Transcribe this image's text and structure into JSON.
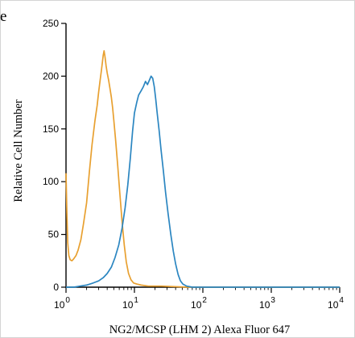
{
  "corner_text": "e",
  "colors": {
    "control": "#e8a030",
    "stained": "#2b86c1",
    "axis": "#000000"
  },
  "chart_data": {
    "type": "line",
    "title": "",
    "xlabel": "NG2/MCSP (LHM 2) Alexa Fluor 647",
    "ylabel": "Relative Cell Number",
    "xscale": "log",
    "xlim": [
      1,
      10000
    ],
    "ylim": [
      0,
      250
    ],
    "yticks": [
      0,
      50,
      100,
      150,
      200,
      250
    ],
    "xticks": [
      {
        "value": 1,
        "base": "10",
        "exp": "0"
      },
      {
        "value": 10,
        "base": "10",
        "exp": "1"
      },
      {
        "value": 100,
        "base": "10",
        "exp": "2"
      },
      {
        "value": 1000,
        "base": "10",
        "exp": "3"
      },
      {
        "value": 10000,
        "base": "10",
        "exp": "4"
      }
    ],
    "grid": false,
    "legend": "none",
    "series": [
      {
        "color": "#e8a030",
        "points": [
          [
            1.0,
            108
          ],
          [
            1.03,
            70
          ],
          [
            1.06,
            42
          ],
          [
            1.1,
            30
          ],
          [
            1.15,
            26
          ],
          [
            1.22,
            25
          ],
          [
            1.3,
            27
          ],
          [
            1.4,
            30
          ],
          [
            1.5,
            35
          ],
          [
            1.65,
            45
          ],
          [
            1.8,
            60
          ],
          [
            2.0,
            80
          ],
          [
            2.2,
            110
          ],
          [
            2.4,
            135
          ],
          [
            2.65,
            158
          ],
          [
            2.85,
            172
          ],
          [
            3.0,
            185
          ],
          [
            3.15,
            196
          ],
          [
            3.3,
            206
          ],
          [
            3.4,
            213
          ],
          [
            3.5,
            220
          ],
          [
            3.6,
            224
          ],
          [
            3.72,
            218
          ],
          [
            3.85,
            210
          ],
          [
            4.0,
            203
          ],
          [
            4.2,
            196
          ],
          [
            4.4,
            188
          ],
          [
            4.6,
            180
          ],
          [
            4.8,
            170
          ],
          [
            5.0,
            158
          ],
          [
            5.3,
            140
          ],
          [
            5.7,
            115
          ],
          [
            6.1,
            90
          ],
          [
            6.6,
            62
          ],
          [
            7.1,
            40
          ],
          [
            7.6,
            24
          ],
          [
            8.2,
            13
          ],
          [
            8.9,
            7
          ],
          [
            9.7,
            4
          ],
          [
            10.8,
            3
          ],
          [
            12.5,
            2
          ],
          [
            16,
            1
          ],
          [
            25,
            1
          ],
          [
            60,
            0
          ],
          [
            150,
            0
          ],
          [
            1000,
            0
          ],
          [
            10000,
            0
          ]
        ]
      },
      {
        "color": "#2b86c1",
        "points": [
          [
            1.0,
            0
          ],
          [
            1.3,
            0
          ],
          [
            1.6,
            1
          ],
          [
            2.0,
            2
          ],
          [
            2.5,
            4
          ],
          [
            3.0,
            6
          ],
          [
            3.5,
            9
          ],
          [
            4.0,
            13
          ],
          [
            4.6,
            19
          ],
          [
            5.2,
            28
          ],
          [
            5.9,
            40
          ],
          [
            6.6,
            56
          ],
          [
            7.3,
            75
          ],
          [
            8.0,
            97
          ],
          [
            8.7,
            122
          ],
          [
            9.4,
            148
          ],
          [
            10.0,
            165
          ],
          [
            10.8,
            175
          ],
          [
            11.5,
            182
          ],
          [
            12.5,
            186
          ],
          [
            13.5,
            190
          ],
          [
            14.5,
            195
          ],
          [
            15.5,
            192
          ],
          [
            16.5,
            196
          ],
          [
            17.5,
            200
          ],
          [
            18.5,
            198
          ],
          [
            19.5,
            190
          ],
          [
            20.5,
            178
          ],
          [
            21.5,
            165
          ],
          [
            23.0,
            148
          ],
          [
            24.5,
            130
          ],
          [
            26.5,
            110
          ],
          [
            28.5,
            90
          ],
          [
            31.0,
            70
          ],
          [
            34.0,
            50
          ],
          [
            37.0,
            34
          ],
          [
            40.0,
            22
          ],
          [
            43.5,
            12
          ],
          [
            47.0,
            6
          ],
          [
            51,
            3
          ],
          [
            58,
            1
          ],
          [
            70,
            0
          ],
          [
            150,
            0
          ],
          [
            1000,
            0
          ],
          [
            10000,
            0
          ]
        ]
      }
    ]
  }
}
